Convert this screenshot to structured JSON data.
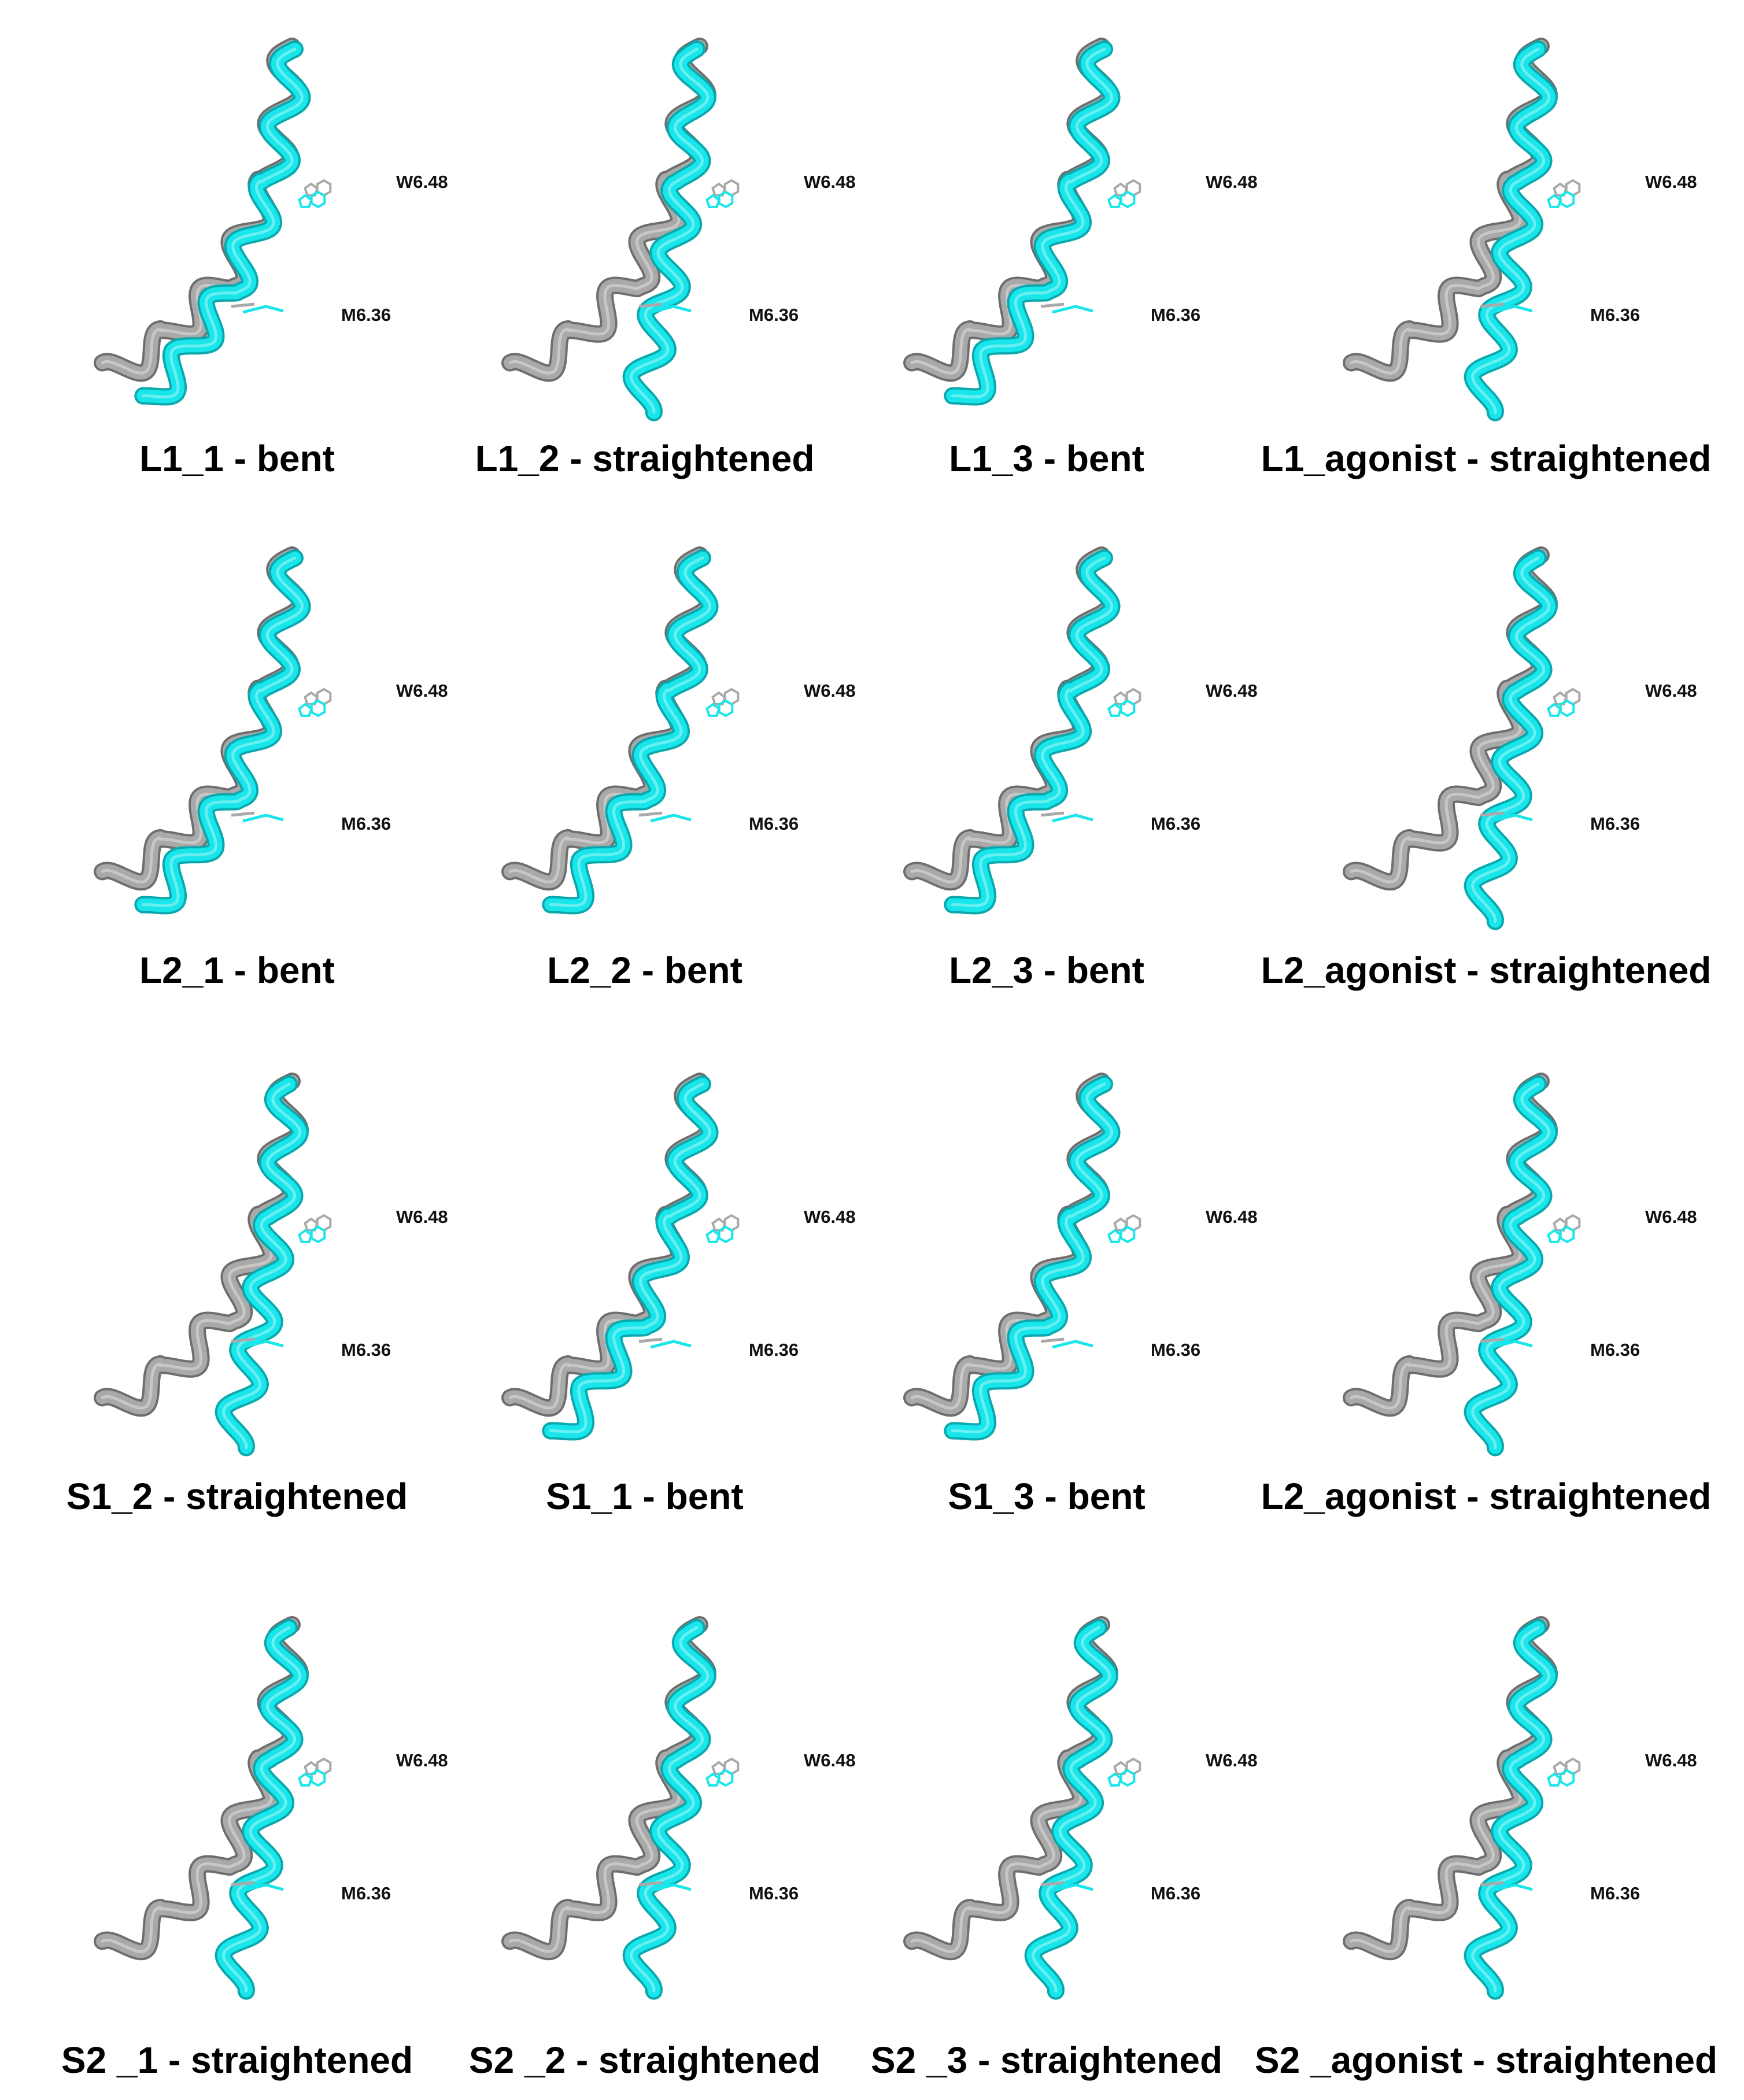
{
  "figure": {
    "colors": {
      "reference_helix": "#a9a9a9",
      "model_helix": "#19e6ea",
      "label": "#111111"
    },
    "residue_labels": {
      "upper": "W6.48",
      "lower": "M6.36"
    },
    "panels": [
      {
        "title": "L1_1 - bent"
      },
      {
        "title": "L1_2 - straightened"
      },
      {
        "title": "L1_3 - bent"
      },
      {
        "title": "L1_agonist - straightened"
      },
      {
        "title": "L2_1 - bent"
      },
      {
        "title": "L2_2 - bent"
      },
      {
        "title": "L2_3 - bent"
      },
      {
        "title": "L2_agonist - straightened"
      },
      {
        "title": "S1_2 - straightened"
      },
      {
        "title": "S1_1 - bent"
      },
      {
        "title": "S1_3 - bent"
      },
      {
        "title": "L2_agonist - straightened"
      },
      {
        "title": "S2 _1 -  straightened"
      },
      {
        "title": "S2 _2 - straightened"
      },
      {
        "title": "S2 _3 -  straightened"
      },
      {
        "title": "S2 _agonist - straightened"
      }
    ]
  }
}
